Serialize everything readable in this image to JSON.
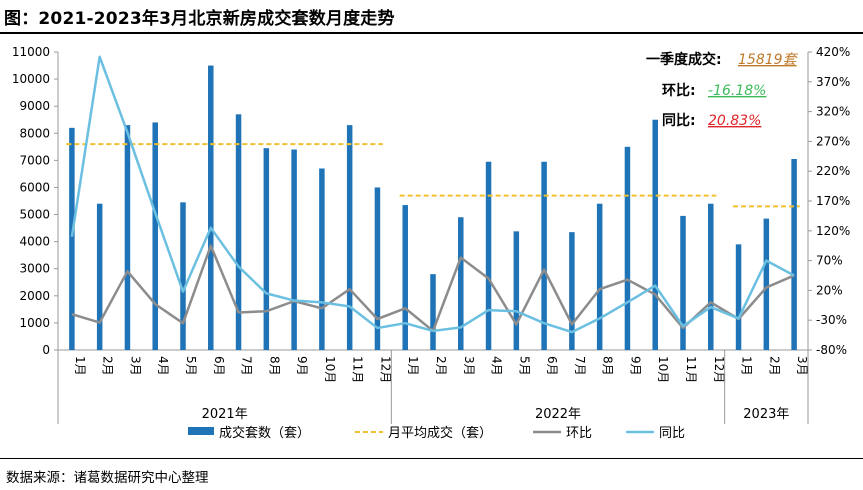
{
  "page": {
    "title": "图：2021-2023年3月北京新房成交套数月度走势",
    "source": "数据来源：诸葛数据研究中心整理"
  },
  "colors": {
    "bar": "#1f73b7",
    "avg_line": "#f2c12e",
    "mom_line": "#8c8c8c",
    "yoy_line": "#6bbfe0",
    "q1_value": "#c07a2c",
    "mom_value": "#3dbb5a",
    "yoy_value": "#e0262a"
  },
  "annotations": {
    "q1_label": "一季度成交:",
    "q1_value": "15819套",
    "mom_label": "环比:",
    "mom_value": "-16.18%",
    "yoy_label": "同比:",
    "yoy_value": "20.83%"
  },
  "chart_data": {
    "type": "bar",
    "categories": [
      "1月",
      "2月",
      "3月",
      "4月",
      "5月",
      "6月",
      "7月",
      "8月",
      "9月",
      "10月",
      "11月",
      "12月",
      "1月",
      "2月",
      "3月",
      "4月",
      "5月",
      "6月",
      "7月",
      "8月",
      "9月",
      "10月",
      "11月",
      "12月",
      "1月",
      "2月",
      "3月"
    ],
    "year_groups": [
      {
        "label": "2021年",
        "count": 12
      },
      {
        "label": "2022年",
        "count": 12
      },
      {
        "label": "2023年",
        "count": 3
      }
    ],
    "series": [
      {
        "name": "成交套数（套）",
        "kind": "bar",
        "axis": "left",
        "values": [
          8200,
          5400,
          8300,
          8400,
          5450,
          10500,
          8700,
          7450,
          7400,
          6700,
          8300,
          6000,
          5350,
          2800,
          4900,
          6950,
          4380,
          6950,
          4350,
          5400,
          7500,
          8500,
          4950,
          5400,
          3900,
          4850,
          7050
        ]
      },
      {
        "name": "月平均成交（套）",
        "kind": "dashed-line",
        "axis": "left",
        "values": [
          7600,
          7600,
          7600,
          7600,
          7600,
          7600,
          7600,
          7600,
          7600,
          7600,
          7600,
          7600,
          5700,
          5700,
          5700,
          5700,
          5700,
          5700,
          5700,
          5700,
          5700,
          5700,
          5700,
          5700,
          5300,
          5300,
          5300
        ]
      },
      {
        "name": "环比",
        "kind": "line",
        "axis": "right",
        "values": [
          -20,
          -34,
          52,
          -3,
          -35,
          95,
          -17,
          -15,
          2,
          -10,
          22,
          -28,
          -10,
          -48,
          75,
          40,
          -37,
          55,
          -37,
          22,
          38,
          13,
          -43,
          0,
          -28,
          25,
          45
        ]
      },
      {
        "name": "同比",
        "kind": "line",
        "axis": "right",
        "values": [
          110,
          412,
          285,
          150,
          18,
          125,
          60,
          15,
          3,
          0,
          -7,
          -43,
          -35,
          -48,
          -42,
          -13,
          -15,
          -35,
          -50,
          -27,
          0,
          28,
          -40,
          -8,
          -27,
          70,
          45
        ]
      }
    ],
    "y_left": {
      "min": 0,
      "max": 11000,
      "step": 1000
    },
    "y_right": {
      "min": -80,
      "max": 420,
      "step": 50,
      "suffix": "%"
    },
    "legend_position": "bottom",
    "grid": false
  }
}
